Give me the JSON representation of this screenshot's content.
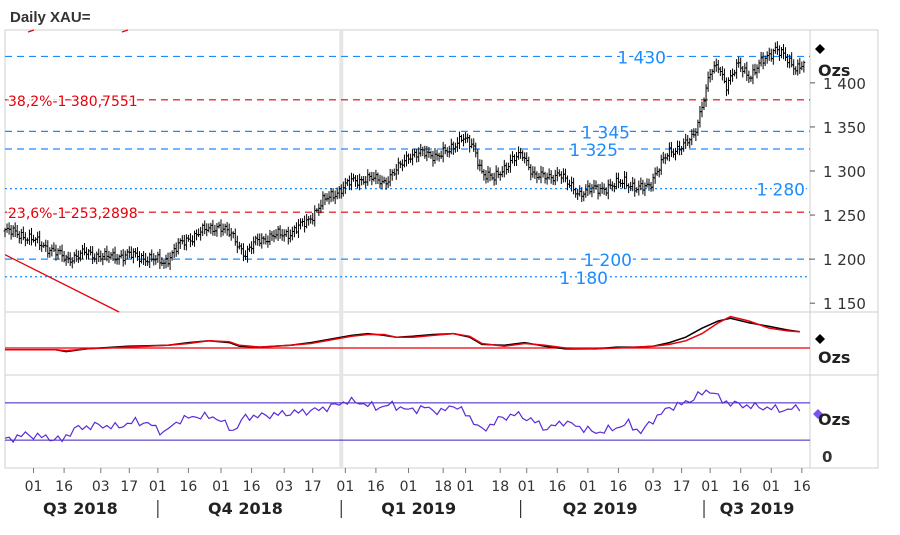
{
  "title": "Daily XAU=",
  "colors": {
    "price": "#000000",
    "fib": "#e8000b",
    "level": "#1a8cff",
    "trend": "#e8000b",
    "macd": "#000000",
    "macd_signal": "#e8000b",
    "rsi": "#5a2bd6",
    "rsi_band": "#3a1ec8",
    "axis_text": "#333333",
    "marker": "#000000",
    "rsi_marker": "#7755ee"
  },
  "chart_data": [
    {
      "type": "candlestick",
      "name": "price",
      "unit_label": "Ozs",
      "yticks": [
        1150,
        1200,
        1250,
        1300,
        1350,
        1400
      ],
      "ytick_labels": [
        "1 150",
        "1 200",
        "1 250",
        "1 300",
        "1 350",
        "1 400"
      ],
      "ylim": [
        1140,
        1460
      ],
      "xlim_days": [
        0,
        395
      ],
      "close_path": [
        [
          0,
          1232
        ],
        [
          8,
          1228
        ],
        [
          15,
          1220
        ],
        [
          22,
          1212
        ],
        [
          30,
          1200
        ],
        [
          40,
          1207
        ],
        [
          50,
          1202
        ],
        [
          60,
          1205
        ],
        [
          70,
          1201
        ],
        [
          78,
          1196
        ],
        [
          85,
          1215
        ],
        [
          95,
          1230
        ],
        [
          105,
          1238
        ],
        [
          112,
          1225
        ],
        [
          118,
          1205
        ],
        [
          124,
          1222
        ],
        [
          132,
          1226
        ],
        [
          140,
          1230
        ],
        [
          148,
          1242
        ],
        [
          156,
          1265
        ],
        [
          162,
          1275
        ],
        [
          170,
          1288
        ],
        [
          178,
          1292
        ],
        [
          186,
          1288
        ],
        [
          192,
          1300
        ],
        [
          198,
          1318
        ],
        [
          206,
          1320
        ],
        [
          212,
          1318
        ],
        [
          218,
          1322
        ],
        [
          224,
          1340
        ],
        [
          230,
          1325
        ],
        [
          234,
          1300
        ],
        [
          240,
          1290
        ],
        [
          248,
          1312
        ],
        [
          254,
          1318
        ],
        [
          260,
          1295
        ],
        [
          266,
          1292
        ],
        [
          272,
          1298
        ],
        [
          276,
          1285
        ],
        [
          282,
          1275
        ],
        [
          290,
          1280
        ],
        [
          298,
          1282
        ],
        [
          304,
          1290
        ],
        [
          310,
          1278
        ],
        [
          316,
          1285
        ],
        [
          320,
          1300
        ],
        [
          326,
          1322
        ],
        [
          334,
          1330
        ],
        [
          338,
          1340
        ],
        [
          342,
          1375
        ],
        [
          346,
          1410
        ],
        [
          350,
          1420
        ],
        [
          354,
          1398
        ],
        [
          360,
          1420
        ],
        [
          366,
          1408
        ],
        [
          372,
          1425
        ],
        [
          378,
          1440
        ],
        [
          384,
          1425
        ],
        [
          388,
          1418
        ],
        [
          392,
          1422
        ]
      ],
      "hlines": [
        {
          "value": 1430,
          "label": "1 430",
          "style": "dashed",
          "kind": "level"
        },
        {
          "value": 1380.7551,
          "label": "38,2%-1 380,7551",
          "style": "dashed",
          "kind": "fib"
        },
        {
          "value": 1345,
          "label": "1 345",
          "style": "dashed",
          "kind": "level"
        },
        {
          "value": 1325,
          "label": "1 325",
          "style": "dashed",
          "kind": "level"
        },
        {
          "value": 1280,
          "label": "1 280",
          "style": "dotted",
          "kind": "level"
        },
        {
          "value": 1253.2898,
          "label": "23,6%-1 253,2898",
          "style": "dashed",
          "kind": "fib"
        },
        {
          "value": 1200,
          "label": "1 200",
          "style": "dashed",
          "kind": "level"
        },
        {
          "value": 1180,
          "label": "1 180",
          "style": "dotted",
          "kind": "level"
        }
      ],
      "trendline": [
        [
          0,
          1205
        ],
        [
          56,
          1140
        ]
      ]
    },
    {
      "type": "line",
      "name": "macd",
      "unit_label": "Ozs",
      "ylim": [
        -30,
        40
      ],
      "zero_line": 0,
      "series": [
        {
          "role": "macd",
          "values": [
            [
              0,
              -2
            ],
            [
              25,
              -2
            ],
            [
              30,
              -4
            ],
            [
              40,
              -1
            ],
            [
              60,
              2
            ],
            [
              80,
              3
            ],
            [
              90,
              6
            ],
            [
              100,
              8
            ],
            [
              110,
              6
            ],
            [
              115,
              2
            ],
            [
              125,
              1
            ],
            [
              140,
              3
            ],
            [
              150,
              6
            ],
            [
              160,
              10
            ],
            [
              170,
              14
            ],
            [
              178,
              16
            ],
            [
              186,
              14
            ],
            [
              192,
              12
            ],
            [
              200,
              13
            ],
            [
              210,
              15
            ],
            [
              220,
              16
            ],
            [
              228,
              12
            ],
            [
              234,
              4
            ],
            [
              245,
              3
            ],
            [
              255,
              6
            ],
            [
              265,
              2
            ],
            [
              275,
              -1
            ],
            [
              290,
              -1
            ],
            [
              300,
              1
            ],
            [
              310,
              1
            ],
            [
              318,
              2
            ],
            [
              326,
              6
            ],
            [
              334,
              12
            ],
            [
              342,
              22
            ],
            [
              350,
              30
            ],
            [
              356,
              33
            ],
            [
              365,
              28
            ],
            [
              375,
              24
            ],
            [
              384,
              20
            ],
            [
              390,
              18
            ]
          ]
        },
        {
          "role": "signal",
          "values": [
            [
              0,
              -2
            ],
            [
              25,
              -2
            ],
            [
              30,
              -3
            ],
            [
              40,
              -1
            ],
            [
              60,
              1
            ],
            [
              80,
              3
            ],
            [
              90,
              5
            ],
            [
              100,
              8
            ],
            [
              110,
              7
            ],
            [
              115,
              3
            ],
            [
              125,
              1
            ],
            [
              140,
              3
            ],
            [
              150,
              5
            ],
            [
              160,
              9
            ],
            [
              170,
              13
            ],
            [
              178,
              15
            ],
            [
              186,
              15
            ],
            [
              192,
              12
            ],
            [
              200,
              12
            ],
            [
              210,
              14
            ],
            [
              220,
              16
            ],
            [
              228,
              13
            ],
            [
              234,
              5
            ],
            [
              245,
              2
            ],
            [
              255,
              5
            ],
            [
              265,
              3
            ],
            [
              275,
              0
            ],
            [
              290,
              -1
            ],
            [
              300,
              0
            ],
            [
              310,
              1
            ],
            [
              318,
              2
            ],
            [
              326,
              4
            ],
            [
              334,
              8
            ],
            [
              342,
              16
            ],
            [
              350,
              28
            ],
            [
              356,
              35
            ],
            [
              365,
              30
            ],
            [
              375,
              22
            ],
            [
              384,
              19
            ],
            [
              390,
              18
            ]
          ]
        }
      ]
    },
    {
      "type": "line",
      "name": "rsi",
      "unit_label": "Ozs",
      "ytick_labels": [
        "0"
      ],
      "ylim": [
        0,
        100
      ],
      "bands": [
        70,
        30
      ],
      "series": [
        {
          "role": "rsi",
          "values": [
            [
              0,
              30
            ],
            [
              10,
              36
            ],
            [
              20,
              33
            ],
            [
              28,
              30
            ],
            [
              34,
              42
            ],
            [
              45,
              46
            ],
            [
              55,
              44
            ],
            [
              64,
              50
            ],
            [
              70,
              48
            ],
            [
              78,
              38
            ],
            [
              86,
              52
            ],
            [
              95,
              56
            ],
            [
              104,
              54
            ],
            [
              112,
              40
            ],
            [
              118,
              55
            ],
            [
              126,
              56
            ],
            [
              135,
              58
            ],
            [
              144,
              60
            ],
            [
              152,
              62
            ],
            [
              160,
              66
            ],
            [
              168,
              72
            ],
            [
              175,
              70
            ],
            [
              182,
              65
            ],
            [
              190,
              68
            ],
            [
              198,
              62
            ],
            [
              206,
              65
            ],
            [
              214,
              60
            ],
            [
              220,
              68
            ],
            [
              228,
              55
            ],
            [
              234,
              40
            ],
            [
              242,
              52
            ],
            [
              250,
              58
            ],
            [
              258,
              52
            ],
            [
              266,
              42
            ],
            [
              274,
              50
            ],
            [
              282,
              44
            ],
            [
              290,
              38
            ],
            [
              298,
              42
            ],
            [
              306,
              48
            ],
            [
              312,
              38
            ],
            [
              318,
              52
            ],
            [
              326,
              65
            ],
            [
              334,
              70
            ],
            [
              340,
              78
            ],
            [
              346,
              84
            ],
            [
              352,
              72
            ],
            [
              360,
              68
            ],
            [
              368,
              66
            ],
            [
              376,
              64
            ],
            [
              384,
              62
            ],
            [
              390,
              66
            ]
          ]
        }
      ]
    }
  ],
  "x_axis": {
    "tick_labels": [
      {
        "day": 14,
        "label": "01"
      },
      {
        "day": 29,
        "label": "16"
      },
      {
        "day": 47,
        "label": "03"
      },
      {
        "day": 61,
        "label": "17"
      },
      {
        "day": 75,
        "label": "01"
      },
      {
        "day": 90,
        "label": "16"
      },
      {
        "day": 106,
        "label": "01"
      },
      {
        "day": 121,
        "label": "16"
      },
      {
        "day": 137,
        "label": "03"
      },
      {
        "day": 151,
        "label": "17"
      },
      {
        "day": 167,
        "label": "01"
      },
      {
        "day": 182,
        "label": "16"
      },
      {
        "day": 198,
        "label": "01"
      },
      {
        "day": 215,
        "label": "18"
      },
      {
        "day": 226,
        "label": "01"
      },
      {
        "day": 243,
        "label": "18"
      },
      {
        "day": 256,
        "label": "01"
      },
      {
        "day": 271,
        "label": "16"
      },
      {
        "day": 286,
        "label": "01"
      },
      {
        "day": 301,
        "label": "16"
      },
      {
        "day": 318,
        "label": "03"
      },
      {
        "day": 332,
        "label": "17"
      },
      {
        "day": 346,
        "label": "01"
      },
      {
        "day": 361,
        "label": "16"
      },
      {
        "day": 376,
        "label": "01"
      },
      {
        "day": 391,
        "label": "16"
      }
    ],
    "quarters": [
      {
        "label": "Q3 2018",
        "center_day": 37
      },
      {
        "label": "Q4 2018",
        "center_day": 118
      },
      {
        "label": "Q1 2019",
        "center_day": 203
      },
      {
        "label": "Q2 2019",
        "center_day": 292
      },
      {
        "label": "Q3 2019",
        "center_day": 369
      }
    ],
    "quarter_separators": [
      75,
      165,
      253,
      343
    ]
  }
}
